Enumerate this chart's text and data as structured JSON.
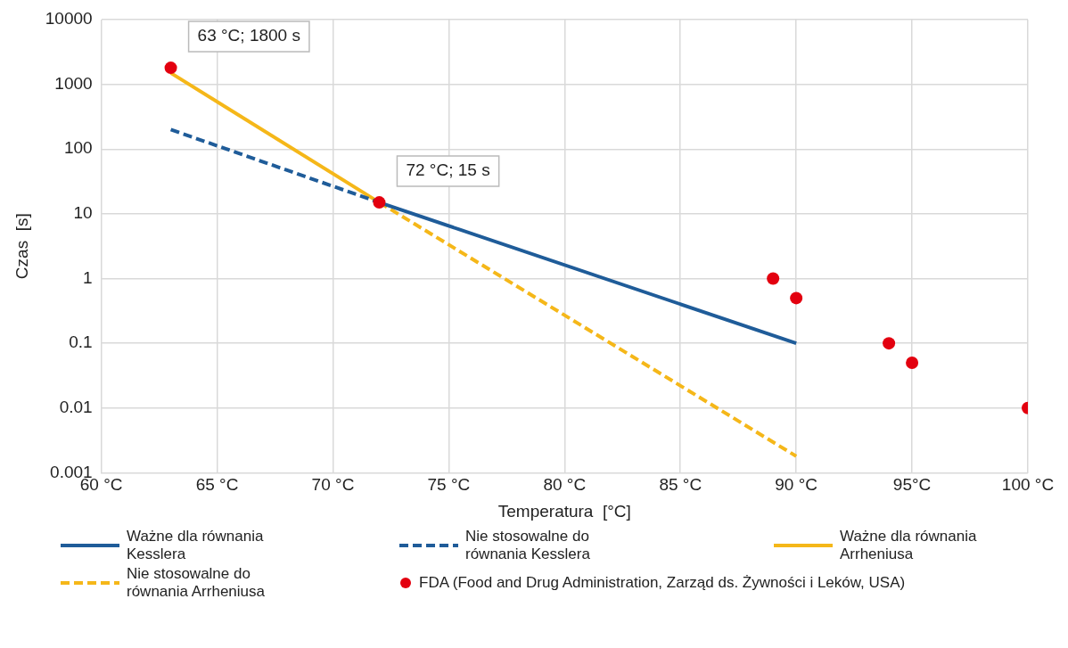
{
  "chart_data": {
    "type": "line",
    "xlabel": "Temperatura  [°C]",
    "ylabel": "Czas  [s]",
    "log": "y",
    "grid": true,
    "legend": "bottom",
    "xlim": [
      60,
      100
    ],
    "xticks": [
      {
        "value": 60,
        "label": "60 °C"
      },
      {
        "value": 65,
        "label": "65 °C"
      },
      {
        "value": 70,
        "label": "70 °C"
      },
      {
        "value": 75,
        "label": "75 °C"
      },
      {
        "value": 80,
        "label": "80 °C"
      },
      {
        "value": 85,
        "label": "85 °C"
      },
      {
        "value": 90,
        "label": "90 °C"
      },
      {
        "value": 95,
        "label": "95°C"
      },
      {
        "value": 100,
        "label": "100 °C"
      }
    ],
    "ylim": [
      0.001,
      10000
    ],
    "yticks": [
      0.001,
      0.01,
      0.1,
      1,
      10,
      100,
      1000,
      10000
    ],
    "series": [
      {
        "name": "Ważne dla równania Kesslera",
        "line_style": "solid",
        "marker": "none",
        "color": "#1f5c99",
        "x": [
          72,
          90
        ],
        "values": [
          15,
          0.1
        ]
      },
      {
        "name": "Nie stosowalne do równania Kesslera",
        "line_style": "dashed",
        "marker": "none",
        "color": "#1f5c99",
        "x": [
          63,
          72
        ],
        "values": [
          200,
          15
        ]
      },
      {
        "name": "Ważne dla równania Arrheniusa",
        "line_style": "solid",
        "marker": "none",
        "color": "#f5b719",
        "x": [
          63,
          72
        ],
        "values": [
          1500,
          15
        ]
      },
      {
        "name": "Nie stosowalne do równania Arrheniusa",
        "line_style": "dashed",
        "marker": "none",
        "color": "#f5b719",
        "x": [
          72,
          90
        ],
        "values": [
          15,
          0.0018
        ]
      },
      {
        "name": "FDA (Food and Drug Administration, Zarząd ds. Żywności i Leków, USA)",
        "type": "scatter",
        "marker": "circle",
        "color": "#e3000f",
        "x": [
          63,
          72,
          89,
          90,
          94,
          95,
          100
        ],
        "values": [
          1800,
          15,
          1,
          0.5,
          0.1,
          0.05,
          0.01
        ]
      }
    ],
    "annotations": [
      {
        "text": "63 °C; 1800 s",
        "x": 63,
        "y": 1800
      },
      {
        "text": "72 °C; 15 s",
        "x": 72,
        "y": 15
      }
    ]
  }
}
